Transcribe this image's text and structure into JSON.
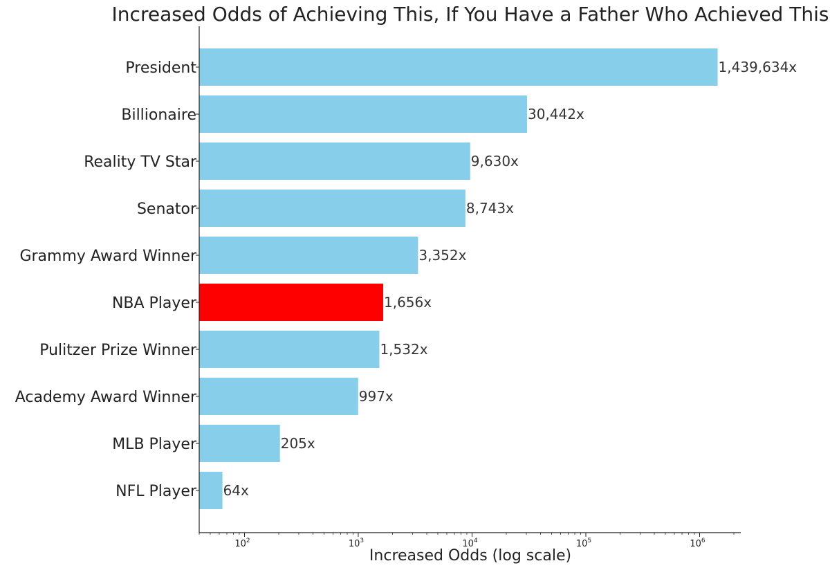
{
  "chart_data": {
    "type": "bar",
    "orientation": "horizontal",
    "title": "Increased Odds of Achieving This, If You Have a Father Who Achieved This",
    "xlabel": "Increased Odds (log scale)",
    "ylabel": "",
    "xscale": "log",
    "xlim": [
      40,
      2300000
    ],
    "xticks": [
      {
        "value": 100,
        "base": "10",
        "exp": "2"
      },
      {
        "value": 1000,
        "base": "10",
        "exp": "3"
      },
      {
        "value": 10000,
        "base": "10",
        "exp": "4"
      },
      {
        "value": 100000,
        "base": "10",
        "exp": "5"
      },
      {
        "value": 1000000,
        "base": "10",
        "exp": "6"
      }
    ],
    "categories": [
      "President",
      "Billionaire",
      "Reality TV Star",
      "Senator",
      "Grammy Award Winner",
      "NBA Player",
      "Pulitzer Prize Winner",
      "Academy Award Winner",
      "MLB Player",
      "NFL Player"
    ],
    "values": [
      1439634,
      30442,
      9630,
      8743,
      3352,
      1656,
      1532,
      997,
      205,
      64
    ],
    "value_labels": [
      "1,439,634x",
      "30,442x",
      "9,630x",
      "8,743x",
      "3,352x",
      "1,656x",
      "1,532x",
      "997x",
      "205x",
      "64x"
    ],
    "highlight": "NBA Player",
    "colors": {
      "bar": "#87ceeb",
      "highlight": "#ff0000",
      "axis": "#222222",
      "text": "#222222"
    },
    "grid": false
  }
}
